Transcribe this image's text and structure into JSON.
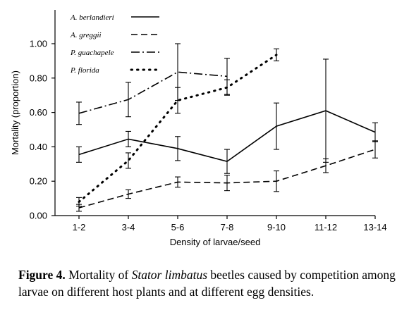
{
  "chart_data": {
    "type": "line",
    "categories": [
      "1-2",
      "3-4",
      "5-6",
      "7-8",
      "9-10",
      "11-12",
      "13-14"
    ],
    "xlabel": "Density of larvae/seed",
    "ylabel": "Mortality (proportion)",
    "ylim": [
      0,
      1.0
    ],
    "yticks": [
      "0.00",
      "0.20",
      "0.40",
      "0.60",
      "0.80",
      "1.00"
    ],
    "legend_position": "top-left",
    "series": [
      {
        "name": "A. berlandieri",
        "dash": "solid",
        "values": [
          0.355,
          0.445,
          0.39,
          0.315,
          0.52,
          0.61,
          0.485
        ],
        "err": [
          0.045,
          0.045,
          0.07,
          0.07,
          0.135,
          0.3,
          0.055
        ]
      },
      {
        "name": "A. greggii",
        "dash": "dashed",
        "values": [
          0.045,
          0.125,
          0.195,
          0.19,
          0.2,
          0.29,
          0.385
        ],
        "err": [
          0.02,
          0.025,
          0.03,
          0.045,
          0.06,
          0.04,
          0.05
        ]
      },
      {
        "name": "P. guachapele",
        "dash": "dashdot",
        "values": [
          0.595,
          0.675,
          0.835,
          0.81,
          null,
          null,
          null
        ],
        "err": [
          0.065,
          0.1,
          0.165,
          0.105,
          null,
          null,
          null
        ]
      },
      {
        "name": "P. florida",
        "dash": "dotted",
        "values": [
          0.08,
          0.32,
          0.67,
          0.745,
          0.935,
          null,
          null
        ],
        "err": [
          0.025,
          0.045,
          0.075,
          0.045,
          0.035,
          null,
          null
        ]
      }
    ]
  },
  "caption": {
    "figure_number": "Figure 4.",
    "text_before": " Mortality of ",
    "species": "Stator limbatus",
    "text_after": " beetles caused by competition among larvae on different host plants and at different egg densities."
  }
}
